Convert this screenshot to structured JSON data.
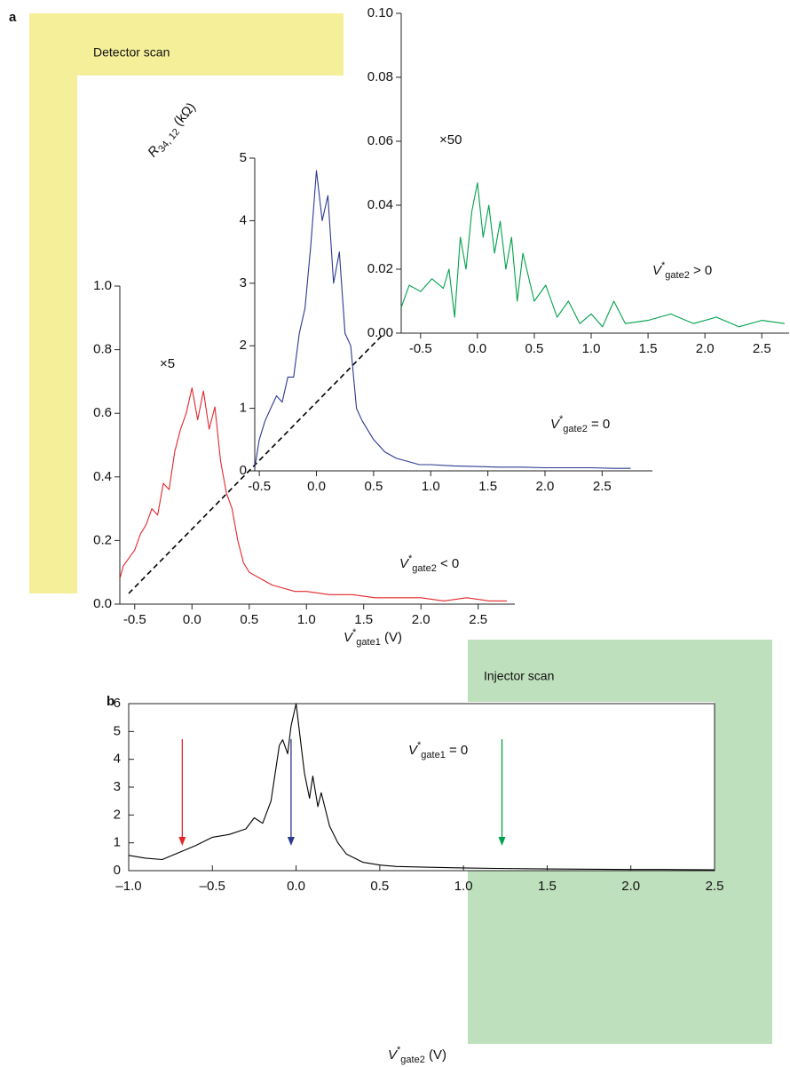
{
  "regions": {
    "panel_a": "a",
    "panel_b": "b",
    "detector": "Detector scan",
    "injector": "Injector scan"
  },
  "chart_data": [
    {
      "type": "line",
      "color": "#e3262b",
      "frame": "axes",
      "xlim": [
        -0.63,
        2.82
      ],
      "ylim": [
        0,
        1
      ],
      "xticks": [
        -0.5,
        {
          "value": 0,
          "label": "0.0"
        },
        0.5,
        {
          "value": 1,
          "label": "1.0"
        },
        1.5,
        {
          "value": 2,
          "label": "2.0"
        },
        2.5
      ],
      "yticks": [
        {
          "value": 0,
          "label": "0.0"
        },
        0.2,
        0.4,
        0.6,
        0.8,
        {
          "value": 1,
          "label": "1.0"
        }
      ],
      "x": [
        -0.63,
        -0.6,
        -0.5,
        -0.45,
        -0.4,
        -0.35,
        -0.3,
        -0.25,
        -0.2,
        -0.15,
        -0.1,
        -0.05,
        0,
        0.05,
        0.1,
        0.15,
        0.2,
        0.25,
        0.3,
        0.35,
        0.4,
        0.45,
        0.5,
        0.6,
        0.7,
        0.8,
        0.9,
        1.0,
        1.2,
        1.4,
        1.6,
        1.8,
        2.0,
        2.2,
        2.4,
        2.6,
        2.75
      ],
      "values": [
        0.08,
        0.12,
        0.17,
        0.22,
        0.25,
        0.3,
        0.28,
        0.38,
        0.36,
        0.48,
        0.55,
        0.6,
        0.68,
        0.58,
        0.67,
        0.55,
        0.62,
        0.45,
        0.35,
        0.3,
        0.2,
        0.13,
        0.1,
        0.08,
        0.06,
        0.05,
        0.04,
        0.04,
        0.03,
        0.03,
        0.02,
        0.02,
        0.02,
        0.01,
        0.02,
        0.01,
        0.01
      ],
      "multiplier": "×5",
      "condition": {
        "main": "V",
        "sup": "*",
        "sub": "gate2",
        "rest": " < 0"
      },
      "x_label": {
        "main": "V",
        "sup": "*",
        "sub": "gate1",
        "rest": " (V)"
      }
    },
    {
      "type": "line",
      "color": "#2b3990",
      "frame": "axes",
      "xlim": [
        -0.54,
        2.94
      ],
      "ylim": [
        0,
        5
      ],
      "xticks": [
        -0.5,
        {
          "value": 0,
          "label": "0.0"
        },
        0.5,
        {
          "value": 1,
          "label": "1.0"
        },
        1.5,
        {
          "value": 2,
          "label": "2.0"
        },
        2.5
      ],
      "yticks": [
        0,
        1,
        2,
        3,
        4,
        5
      ],
      "x": [
        -0.54,
        -0.5,
        -0.45,
        -0.4,
        -0.35,
        -0.3,
        -0.25,
        -0.2,
        -0.15,
        -0.1,
        -0.05,
        0,
        0.05,
        0.1,
        0.15,
        0.2,
        0.25,
        0.3,
        0.35,
        0.4,
        0.5,
        0.6,
        0.7,
        0.8,
        0.9,
        1.0,
        1.2,
        1.4,
        1.6,
        1.8,
        2.0,
        2.2,
        2.4,
        2.6,
        2.75
      ],
      "values": [
        0.05,
        0.5,
        0.8,
        1.0,
        1.2,
        1.1,
        1.5,
        1.5,
        2.2,
        2.6,
        3.6,
        4.8,
        4.0,
        4.4,
        3.0,
        3.5,
        2.2,
        2.0,
        1.0,
        0.8,
        0.5,
        0.3,
        0.2,
        0.15,
        0.1,
        0.1,
        0.08,
        0.07,
        0.06,
        0.06,
        0.05,
        0.05,
        0.05,
        0.04,
        0.04
      ],
      "condition": {
        "main": "V",
        "sup": "*",
        "sub": "gate2",
        "rest": " = 0"
      },
      "y_label": {
        "main": "R",
        "sub": "34, 12",
        "rest": " (kΩ)"
      }
    },
    {
      "type": "line",
      "color": "#00a14b",
      "frame": "axes",
      "xlim": [
        -0.67,
        2.74
      ],
      "ylim": [
        0,
        0.1
      ],
      "xticks": [
        -0.5,
        {
          "value": 0,
          "label": "0.0"
        },
        0.5,
        {
          "value": 1,
          "label": "1.0"
        },
        1.5,
        {
          "value": 2,
          "label": "2.0"
        },
        2.5
      ],
      "yticks": [
        {
          "value": 0,
          "label": "0.00"
        },
        0.02,
        0.04,
        0.06,
        0.08,
        {
          "value": 0.1,
          "label": "0.10"
        }
      ],
      "x": [
        -0.67,
        -0.6,
        -0.5,
        -0.4,
        -0.3,
        -0.25,
        -0.2,
        -0.15,
        -0.1,
        -0.05,
        0,
        0.05,
        0.1,
        0.15,
        0.2,
        0.25,
        0.3,
        0.35,
        0.4,
        0.5,
        0.6,
        0.7,
        0.8,
        0.9,
        1.0,
        1.1,
        1.2,
        1.3,
        1.5,
        1.7,
        1.9,
        2.1,
        2.3,
        2.5,
        2.7
      ],
      "values": [
        0.008,
        0.015,
        0.013,
        0.017,
        0.014,
        0.02,
        0.005,
        0.03,
        0.02,
        0.038,
        0.047,
        0.03,
        0.04,
        0.025,
        0.035,
        0.02,
        0.03,
        0.01,
        0.025,
        0.01,
        0.015,
        0.005,
        0.01,
        0.003,
        0.006,
        0.002,
        0.01,
        0.003,
        0.004,
        0.006,
        0.003,
        0.005,
        0.002,
        0.004,
        0.003
      ],
      "multiplier": "×50",
      "condition": {
        "main": "V",
        "sup": "*",
        "sub": "gate2",
        "rest": " > 0"
      }
    },
    {
      "type": "line",
      "color": "#000000",
      "frame": "box",
      "xlim": [
        -1,
        2.5
      ],
      "ylim": [
        0,
        6
      ],
      "xticks": [
        {
          "value": -1,
          "label": "–1.0"
        },
        {
          "value": -0.5,
          "label": "–0.5"
        },
        {
          "value": 0,
          "label": "0.0"
        },
        0.5,
        {
          "value": 1,
          "label": "1.0"
        },
        1.5,
        {
          "value": 2,
          "label": "2.0"
        },
        2.5
      ],
      "yticks": [
        0,
        1,
        2,
        3,
        4,
        5,
        6
      ],
      "x": [
        -1.0,
        -0.9,
        -0.8,
        -0.7,
        -0.6,
        -0.5,
        -0.4,
        -0.3,
        -0.25,
        -0.2,
        -0.15,
        -0.1,
        -0.08,
        -0.05,
        -0.03,
        0,
        0.03,
        0.05,
        0.08,
        0.1,
        0.13,
        0.15,
        0.2,
        0.25,
        0.3,
        0.4,
        0.5,
        0.6,
        0.8,
        1.0,
        1.2,
        1.5,
        1.8,
        2.0,
        2.2,
        2.5
      ],
      "values": [
        0.55,
        0.45,
        0.4,
        0.65,
        0.9,
        1.2,
        1.3,
        1.5,
        1.9,
        1.7,
        2.5,
        4.5,
        4.7,
        4.2,
        5.2,
        6.0,
        4.5,
        3.5,
        2.6,
        3.4,
        2.3,
        2.8,
        1.6,
        1.0,
        0.6,
        0.3,
        0.2,
        0.15,
        0.12,
        0.1,
        0.08,
        0.06,
        0.05,
        0.04,
        0.04,
        0.03
      ],
      "condition": {
        "main": "V",
        "sup": "*",
        "sub": "gate1",
        "rest": " = 0"
      },
      "x_label": {
        "main": "V",
        "sup": "*",
        "sub": "gate2",
        "rest": " (V)"
      },
      "arrows": [
        {
          "x": -0.68,
          "color": "#e3262b"
        },
        {
          "x": -0.03,
          "color": "#2b3990"
        },
        {
          "x": 1.23,
          "color": "#00a14b"
        }
      ]
    }
  ]
}
